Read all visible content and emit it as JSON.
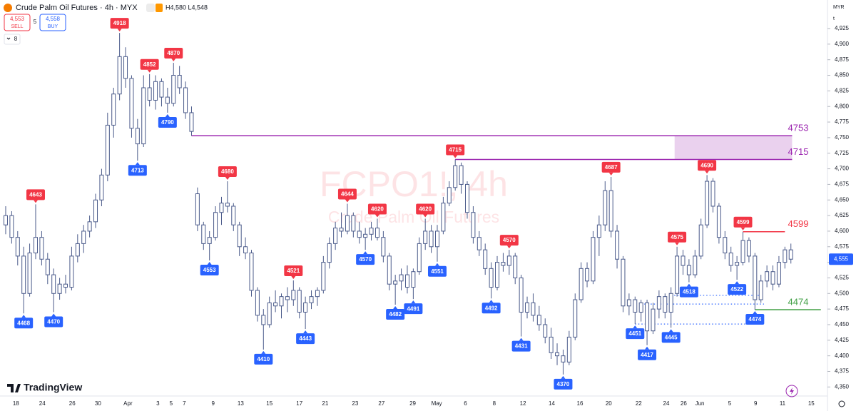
{
  "header": {
    "title": "Crude Palm Oil Futures · 4h · MYX",
    "hl": "H4,580 L4,548",
    "sell_price": "4,553",
    "sell_label": "SELL",
    "spread": "5",
    "buy_price": "4,558",
    "buy_label": "BUY",
    "indicators": "8",
    "currency": "MYR",
    "unit": "t",
    "price_tag": "4,555",
    "brand": "TradingView"
  },
  "watermark": {
    "symbol": "FCPO1!, 4h",
    "name": "Crude Palm Oil Futures"
  },
  "chart_data": {
    "type": "candlestick",
    "candle_fill": "#ffffff",
    "candle_stroke": "#4a5a8a",
    "high_color": "#f23645",
    "low_color": "#2962ff",
    "ylim": [
      4335.5,
      4970.8
    ],
    "xlim": [
      -0.95,
      137.1
    ],
    "yticks": [
      {
        "value": 4350,
        "label": "4,350"
      },
      {
        "value": 4375,
        "label": "4,375"
      },
      {
        "value": 4400,
        "label": "4,400"
      },
      {
        "value": 4425,
        "label": "4,425"
      },
      {
        "value": 4450,
        "label": "4,450"
      },
      {
        "value": 4475,
        "label": "4,475"
      },
      {
        "value": 4500,
        "label": "4,500"
      },
      {
        "value": 4525,
        "label": "4,525"
      },
      {
        "value": 4550,
        "label": "4,550"
      },
      {
        "value": 4575,
        "label": "4,575"
      },
      {
        "value": 4600,
        "label": "4,600"
      },
      {
        "value": 4625,
        "label": "4,625"
      },
      {
        "value": 4650,
        "label": "4,650"
      },
      {
        "value": 4675,
        "label": "4,675"
      },
      {
        "value": 4700,
        "label": "4,700"
      },
      {
        "value": 4725,
        "label": "4,725"
      },
      {
        "value": 4750,
        "label": "4,750"
      },
      {
        "value": 4775,
        "label": "4,775"
      },
      {
        "value": 4800,
        "label": "4,800"
      },
      {
        "value": 4825,
        "label": "4,825"
      },
      {
        "value": 4850,
        "label": "4,850"
      },
      {
        "value": 4875,
        "label": "4,875"
      },
      {
        "value": 4900,
        "label": "4,900"
      },
      {
        "value": 4925,
        "label": "4,925"
      }
    ],
    "xticks": [
      {
        "value": 1.7,
        "label": "18"
      },
      {
        "value": 6.1,
        "label": "24"
      },
      {
        "value": 11.1,
        "label": "26"
      },
      {
        "value": 15.4,
        "label": "30"
      },
      {
        "value": 20.4,
        "label": "Apr"
      },
      {
        "value": 25.4,
        "label": "3"
      },
      {
        "value": 27.6,
        "label": "5"
      },
      {
        "value": 29.8,
        "label": "7"
      },
      {
        "value": 34.6,
        "label": "9"
      },
      {
        "value": 39.2,
        "label": "13"
      },
      {
        "value": 44.0,
        "label": "15"
      },
      {
        "value": 49.0,
        "label": "17"
      },
      {
        "value": 53.3,
        "label": "21"
      },
      {
        "value": 58.3,
        "label": "23"
      },
      {
        "value": 62.7,
        "label": "27"
      },
      {
        "value": 67.9,
        "label": "29"
      },
      {
        "value": 71.9,
        "label": "May"
      },
      {
        "value": 76.7,
        "label": "6"
      },
      {
        "value": 81.5,
        "label": "8"
      },
      {
        "value": 86.3,
        "label": "12"
      },
      {
        "value": 91.1,
        "label": "14"
      },
      {
        "value": 95.8,
        "label": "16"
      },
      {
        "value": 100.6,
        "label": "20"
      },
      {
        "value": 105.6,
        "label": "22"
      },
      {
        "value": 110.2,
        "label": "24"
      },
      {
        "value": 113.1,
        "label": "26"
      },
      {
        "value": 115.8,
        "label": "Jun"
      },
      {
        "value": 120.8,
        "label": "5"
      },
      {
        "value": 125.1,
        "label": "9"
      },
      {
        "value": 129.6,
        "label": "11"
      },
      {
        "value": 134.4,
        "label": "15"
      }
    ],
    "candles": [
      [
        4610,
        4640,
        4595,
        4625
      ],
      [
        4625,
        4632,
        4580,
        4590
      ],
      [
        4590,
        4600,
        4545,
        4560
      ],
      [
        4560,
        4575,
        4468,
        4500
      ],
      [
        4500,
        4580,
        4495,
        4565
      ],
      [
        4565,
        4643,
        4555,
        4590
      ],
      [
        4590,
        4600,
        4545,
        4555
      ],
      [
        4555,
        4565,
        4515,
        4530
      ],
      [
        4530,
        4540,
        4470,
        4500
      ],
      [
        4500,
        4525,
        4490,
        4515
      ],
      [
        4515,
        4530,
        4500,
        4510
      ],
      [
        4510,
        4575,
        4505,
        4560
      ],
      [
        4560,
        4595,
        4550,
        4580
      ],
      [
        4580,
        4610,
        4565,
        4600
      ],
      [
        4600,
        4625,
        4590,
        4615
      ],
      [
        4615,
        4660,
        4605,
        4650
      ],
      [
        4650,
        4700,
        4640,
        4690
      ],
      [
        4690,
        4790,
        4680,
        4770
      ],
      [
        4770,
        4830,
        4750,
        4820
      ],
      [
        4820,
        4918,
        4810,
        4880
      ],
      [
        4880,
        4895,
        4830,
        4845
      ],
      [
        4845,
        4850,
        4750,
        4765
      ],
      [
        4765,
        4780,
        4713,
        4740
      ],
      [
        4740,
        4850,
        4735,
        4830
      ],
      [
        4830,
        4852,
        4800,
        4810
      ],
      [
        4810,
        4850,
        4795,
        4840
      ],
      [
        4840,
        4845,
        4800,
        4815
      ],
      [
        4815,
        4830,
        4790,
        4805
      ],
      [
        4805,
        4870,
        4800,
        4850
      ],
      [
        4850,
        4865,
        4820,
        4830
      ],
      [
        4830,
        4840,
        4780,
        4790
      ],
      [
        4790,
        4800,
        4753,
        4760
      ],
      [
        4660,
        4670,
        4600,
        4610
      ],
      [
        4610,
        4615,
        4570,
        4580
      ],
      [
        4580,
        4600,
        4553,
        4590
      ],
      [
        4590,
        4640,
        4585,
        4630
      ],
      [
        4630,
        4655,
        4610,
        4645
      ],
      [
        4645,
        4680,
        4630,
        4640
      ],
      [
        4640,
        4645,
        4600,
        4610
      ],
      [
        4610,
        4615,
        4560,
        4575
      ],
      [
        4575,
        4590,
        4555,
        4565
      ],
      [
        4565,
        4570,
        4495,
        4505
      ],
      [
        4505,
        4510,
        4455,
        4465
      ],
      [
        4465,
        4475,
        4410,
        4450
      ],
      [
        4450,
        4495,
        4445,
        4485
      ],
      [
        4485,
        4505,
        4470,
        4480
      ],
      [
        4480,
        4500,
        4460,
        4495
      ],
      [
        4495,
        4510,
        4470,
        4490
      ],
      [
        4490,
        4521,
        4480,
        4505
      ],
      [
        4505,
        4510,
        4460,
        4470
      ],
      [
        4470,
        4495,
        4443,
        4485
      ],
      [
        4485,
        4505,
        4475,
        4495
      ],
      [
        4495,
        4510,
        4480,
        4505
      ],
      [
        4505,
        4560,
        4500,
        4550
      ],
      [
        4550,
        4590,
        4540,
        4580
      ],
      [
        4580,
        4615,
        4570,
        4605
      ],
      [
        4605,
        4630,
        4590,
        4600
      ],
      [
        4600,
        4644,
        4595,
        4625
      ],
      [
        4625,
        4630,
        4590,
        4600
      ],
      [
        4600,
        4615,
        4580,
        4590
      ],
      [
        4590,
        4605,
        4570,
        4595
      ],
      [
        4595,
        4615,
        4585,
        4605
      ],
      [
        4605,
        4620,
        4585,
        4590
      ],
      [
        4590,
        4600,
        4550,
        4560
      ],
      [
        4560,
        4565,
        4505,
        4515
      ],
      [
        4515,
        4530,
        4482,
        4520
      ],
      [
        4520,
        4540,
        4505,
        4530
      ],
      [
        4530,
        4545,
        4500,
        4510
      ],
      [
        4510,
        4540,
        4491,
        4535
      ],
      [
        4535,
        4590,
        4530,
        4580
      ],
      [
        4580,
        4620,
        4570,
        4600
      ],
      [
        4600,
        4610,
        4565,
        4575
      ],
      [
        4575,
        4610,
        4551,
        4600
      ],
      [
        4600,
        4655,
        4595,
        4645
      ],
      [
        4645,
        4680,
        4640,
        4670
      ],
      [
        4670,
        4715,
        4665,
        4705
      ],
      [
        4705,
        4710,
        4660,
        4675
      ],
      [
        4675,
        4680,
        4620,
        4630
      ],
      [
        4630,
        4640,
        4580,
        4590
      ],
      [
        4590,
        4600,
        4560,
        4570
      ],
      [
        4570,
        4580,
        4530,
        4540
      ],
      [
        4540,
        4550,
        4492,
        4510
      ],
      [
        4510,
        4560,
        4505,
        4550
      ],
      [
        4550,
        4565,
        4535,
        4545
      ],
      [
        4545,
        4570,
        4530,
        4560
      ],
      [
        4560,
        4565,
        4515,
        4525
      ],
      [
        4525,
        4530,
        4431,
        4470
      ],
      [
        4470,
        4495,
        4460,
        4485
      ],
      [
        4485,
        4500,
        4455,
        4465
      ],
      [
        4465,
        4480,
        4440,
        4450
      ],
      [
        4450,
        4460,
        4420,
        4430
      ],
      [
        4430,
        4445,
        4395,
        4405
      ],
      [
        4405,
        4420,
        4385,
        4400
      ],
      [
        4400,
        4410,
        4370,
        4390
      ],
      [
        4390,
        4440,
        4385,
        4430
      ],
      [
        4430,
        4500,
        4425,
        4490
      ],
      [
        4490,
        4550,
        4485,
        4540
      ],
      [
        4540,
        4550,
        4510,
        4520
      ],
      [
        4520,
        4600,
        4515,
        4590
      ],
      [
        4590,
        4625,
        4560,
        4610
      ],
      [
        4610,
        4680,
        4600,
        4665
      ],
      [
        4665,
        4687,
        4590,
        4600
      ],
      [
        4600,
        4610,
        4540,
        4555
      ],
      [
        4555,
        4560,
        4470,
        4480
      ],
      [
        4480,
        4500,
        4465,
        4490
      ],
      [
        4490,
        4495,
        4451,
        4470
      ],
      [
        4470,
        4490,
        4455,
        4485
      ],
      [
        4485,
        4490,
        4417,
        4440
      ],
      [
        4440,
        4485,
        4435,
        4475
      ],
      [
        4475,
        4505,
        4460,
        4495
      ],
      [
        4495,
        4500,
        4460,
        4470
      ],
      [
        4470,
        4510,
        4445,
        4500
      ],
      [
        4500,
        4575,
        4495,
        4560
      ],
      [
        4560,
        4570,
        4530,
        4545
      ],
      [
        4545,
        4555,
        4518,
        4530
      ],
      [
        4530,
        4570,
        4525,
        4560
      ],
      [
        4560,
        4620,
        4555,
        4610
      ],
      [
        4610,
        4690,
        4605,
        4680
      ],
      [
        4680,
        4685,
        4630,
        4640
      ],
      [
        4640,
        4645,
        4580,
        4590
      ],
      [
        4590,
        4600,
        4555,
        4565
      ],
      [
        4565,
        4575,
        4535,
        4545
      ],
      [
        4545,
        4560,
        4522,
        4550
      ],
      [
        4550,
        4599,
        4545,
        4585
      ],
      [
        4585,
        4590,
        4550,
        4560
      ],
      [
        4560,
        4565,
        4474,
        4490
      ],
      [
        4490,
        4530,
        4485,
        4520
      ],
      [
        4520,
        4545,
        4510,
        4535
      ],
      [
        4535,
        4545,
        4505,
        4515
      ],
      [
        4515,
        4560,
        4510,
        4550
      ],
      [
        4550,
        4575,
        4540,
        4570
      ],
      [
        4570,
        4580,
        4548,
        4555
      ]
    ],
    "high_labels": [
      5,
      19,
      24,
      28,
      37,
      48,
      57,
      62,
      70,
      75,
      84,
      101,
      112,
      117,
      123
    ],
    "low_labels": [
      3,
      8,
      22,
      27,
      34,
      43,
      50,
      60,
      65,
      68,
      72,
      81,
      86,
      93,
      105,
      107,
      111,
      114,
      122,
      125
    ],
    "levels": [
      {
        "value": 4753,
        "color": "#9c27b0",
        "from": 31,
        "to": 131.2
      },
      {
        "value": 4715,
        "color": "#9c27b0",
        "from": 75,
        "to": 131.2
      },
      {
        "value": 4599,
        "color": "#f23645",
        "from": 123,
        "to": 130
      },
      {
        "value": 4474,
        "color": "#43a047",
        "from": 125,
        "to": 136
      }
    ],
    "zone": {
      "from": 111.6,
      "to": 131.2,
      "color": "#e1bee7"
    },
    "dotted_levels": [
      {
        "value": 4497,
        "from": 111,
        "to": 126.5
      },
      {
        "value": 4483,
        "from": 106,
        "to": 126.5
      },
      {
        "value": 4451,
        "from": 105,
        "to": 125
      }
    ]
  }
}
